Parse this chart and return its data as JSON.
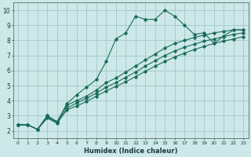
{
  "title": "",
  "xlabel": "Humidex (Indice chaleur)",
  "bg_color": "#cce8e8",
  "grid_color": "#aacccc",
  "line_color": "#1a6b5a",
  "xlim": [
    -0.5,
    23.5
  ],
  "ylim": [
    1.5,
    10.5
  ],
  "xticks": [
    0,
    1,
    2,
    3,
    4,
    5,
    6,
    7,
    8,
    9,
    10,
    11,
    12,
    13,
    14,
    15,
    16,
    17,
    18,
    19,
    20,
    21,
    22,
    23
  ],
  "yticks": [
    2,
    3,
    4,
    5,
    6,
    7,
    8,
    9,
    10
  ],
  "series1": [
    [
      0,
      2.4
    ],
    [
      1,
      2.4
    ],
    [
      2,
      2.1
    ],
    [
      3,
      3.0
    ],
    [
      4,
      2.6
    ],
    [
      5,
      3.8
    ],
    [
      6,
      4.4
    ],
    [
      7,
      4.9
    ],
    [
      8,
      5.4
    ],
    [
      9,
      6.6
    ],
    [
      10,
      8.1
    ],
    [
      11,
      8.5
    ],
    [
      12,
      9.6
    ],
    [
      13,
      9.4
    ],
    [
      14,
      9.4
    ],
    [
      15,
      10.0
    ],
    [
      16,
      9.6
    ],
    [
      17,
      9.0
    ],
    [
      18,
      8.4
    ],
    [
      19,
      8.5
    ],
    [
      20,
      7.8
    ],
    [
      21,
      8.3
    ],
    [
      22,
      8.7
    ],
    [
      23,
      8.7
    ]
  ],
  "series2": [
    [
      0,
      2.4
    ],
    [
      1,
      2.4
    ],
    [
      2,
      2.1
    ],
    [
      3,
      3.0
    ],
    [
      4,
      2.6
    ],
    [
      5,
      3.7
    ],
    [
      6,
      4.0
    ],
    [
      7,
      4.3
    ],
    [
      8,
      4.7
    ],
    [
      9,
      5.2
    ],
    [
      10,
      5.5
    ],
    [
      11,
      5.9
    ],
    [
      12,
      6.3
    ],
    [
      13,
      6.7
    ],
    [
      14,
      7.1
    ],
    [
      15,
      7.5
    ],
    [
      16,
      7.8
    ],
    [
      17,
      8.0
    ],
    [
      18,
      8.2
    ],
    [
      19,
      8.35
    ],
    [
      20,
      8.5
    ],
    [
      21,
      8.6
    ],
    [
      22,
      8.7
    ],
    [
      23,
      8.7
    ]
  ],
  "series3": [
    [
      0,
      2.4
    ],
    [
      1,
      2.4
    ],
    [
      2,
      2.1
    ],
    [
      3,
      2.9
    ],
    [
      4,
      2.55
    ],
    [
      5,
      3.5
    ],
    [
      6,
      3.85
    ],
    [
      7,
      4.15
    ],
    [
      8,
      4.5
    ],
    [
      9,
      4.9
    ],
    [
      10,
      5.2
    ],
    [
      11,
      5.55
    ],
    [
      12,
      5.9
    ],
    [
      13,
      6.3
    ],
    [
      14,
      6.65
    ],
    [
      15,
      7.0
    ],
    [
      16,
      7.3
    ],
    [
      17,
      7.55
    ],
    [
      18,
      7.75
    ],
    [
      19,
      7.95
    ],
    [
      20,
      8.1
    ],
    [
      21,
      8.25
    ],
    [
      22,
      8.4
    ],
    [
      23,
      8.5
    ]
  ],
  "series4": [
    [
      0,
      2.4
    ],
    [
      1,
      2.4
    ],
    [
      2,
      2.1
    ],
    [
      3,
      2.85
    ],
    [
      4,
      2.5
    ],
    [
      5,
      3.4
    ],
    [
      6,
      3.65
    ],
    [
      7,
      3.95
    ],
    [
      8,
      4.3
    ],
    [
      9,
      4.65
    ],
    [
      10,
      4.95
    ],
    [
      11,
      5.25
    ],
    [
      12,
      5.6
    ],
    [
      13,
      5.95
    ],
    [
      14,
      6.3
    ],
    [
      15,
      6.6
    ],
    [
      16,
      6.9
    ],
    [
      17,
      7.15
    ],
    [
      18,
      7.4
    ],
    [
      19,
      7.6
    ],
    [
      20,
      7.8
    ],
    [
      21,
      7.95
    ],
    [
      22,
      8.1
    ],
    [
      23,
      8.25
    ]
  ]
}
